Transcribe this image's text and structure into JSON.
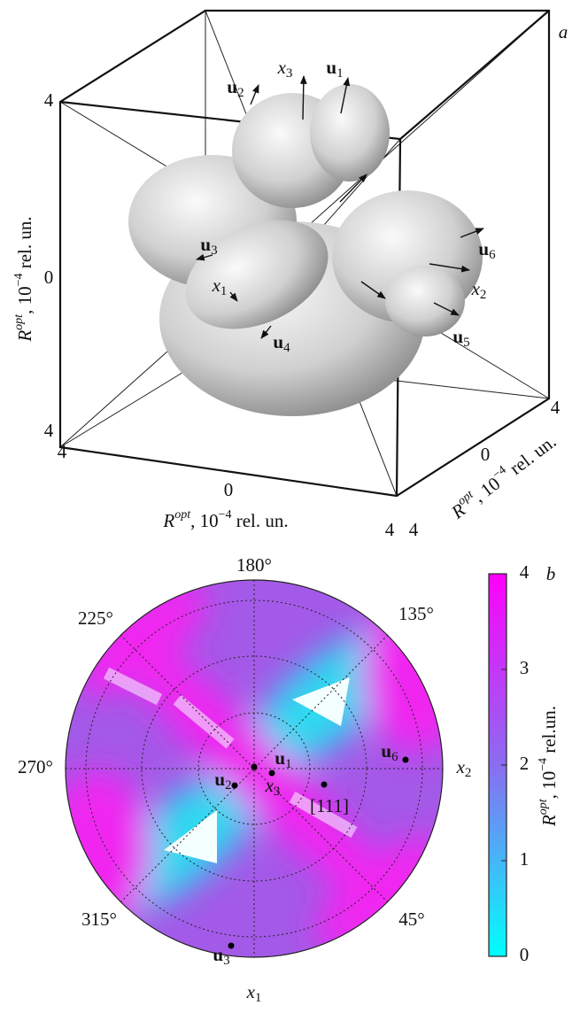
{
  "panel_a": {
    "label": "a",
    "vertical_ticks": [
      4,
      0,
      4
    ],
    "front_ticks": [
      4,
      0,
      4
    ],
    "depth_ticks": [
      4,
      0,
      4
    ],
    "axis_label": {
      "symbol": "R",
      "sup": "opt",
      "mid": ", 10",
      "exp": "−4",
      "unit": " rel. un."
    },
    "vectors": [
      {
        "base": "u",
        "sub": "2"
      },
      {
        "base": "x",
        "sub": "3"
      },
      {
        "base": "u",
        "sub": "1"
      },
      {
        "base": "u",
        "sub": "3"
      },
      {
        "base": "x",
        "sub": "1"
      },
      {
        "base": "u",
        "sub": "6"
      },
      {
        "base": "x",
        "sub": "2"
      },
      {
        "base": "u",
        "sub": "5"
      },
      {
        "base": "u",
        "sub": "4"
      }
    ]
  },
  "panel_b": {
    "label": "b",
    "angles": [
      "180°",
      "135°",
      "225°",
      "270°",
      "315°",
      "45°"
    ],
    "points": [
      {
        "base": "u",
        "sub": "1"
      },
      {
        "base": "u",
        "sub": "2"
      },
      {
        "base": "x",
        "sub": "3"
      },
      {
        "base": "u",
        "sub": "6"
      },
      {
        "base": "u",
        "sub": "3"
      }
    ],
    "direction_label": "[111]",
    "axes": [
      {
        "base": "x",
        "sub": "2"
      },
      {
        "base": "x",
        "sub": "1"
      }
    ],
    "colorbar": {
      "ticks": [
        0,
        1,
        2,
        3,
        4
      ],
      "label": {
        "symbol": "R",
        "sup": "opt",
        "mid": ", 10",
        "exp": "−4",
        "unit": " rel.un."
      }
    }
  }
}
